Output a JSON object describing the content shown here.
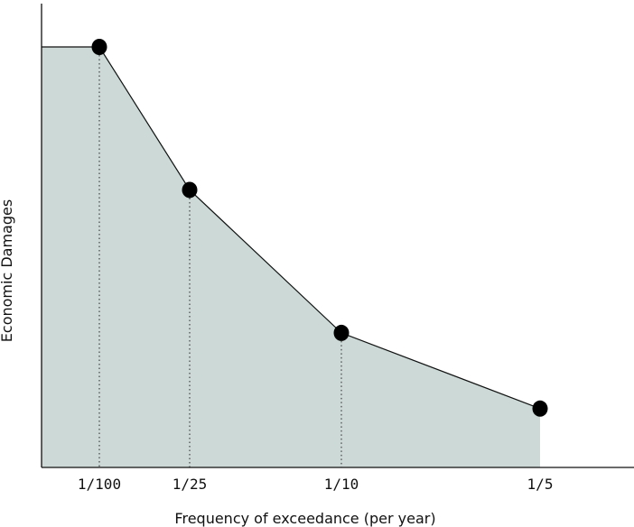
{
  "chart_data": {
    "type": "area",
    "title": "",
    "xlabel": "Frequency of exceedance (per year)",
    "ylabel": "Economic Damages",
    "categories": [
      "1/100",
      "1/25",
      "1/10",
      "1/5"
    ],
    "x": [
      0.01,
      0.04,
      0.1,
      0.2
    ],
    "values": [
      1.0,
      0.66,
      0.32,
      0.14
    ],
    "ylim": [
      0,
      1.1
    ],
    "flat_extension_to_origin": true,
    "dotted_drop_lines": true,
    "show_y_ticks": false,
    "grid": false,
    "colors": {
      "fill": "#ccd9d7",
      "line": "#111111",
      "marker": "#000000",
      "axis": "#111111",
      "drop_line": "#444444"
    }
  }
}
